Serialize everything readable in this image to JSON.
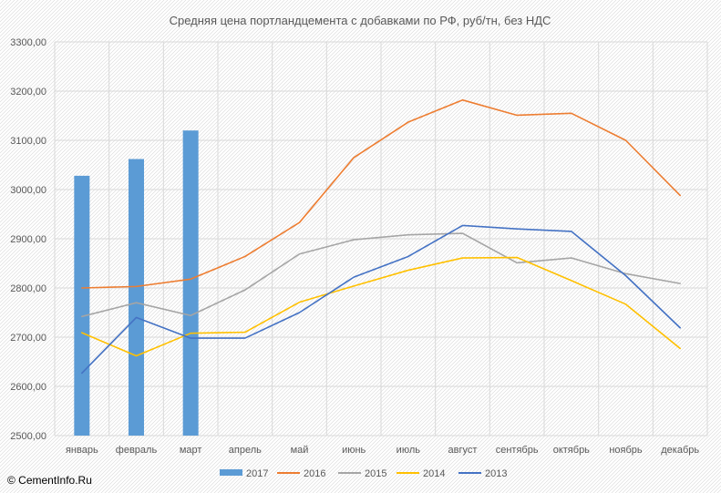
{
  "copyright": "© CementInfo.Ru",
  "chart_data": {
    "type": "bar+line",
    "title": "Средняя цена портландцемента с добавками по РФ, руб/тн, без НДС",
    "categories": [
      "январь",
      "февраль",
      "март",
      "апрель",
      "май",
      "июнь",
      "июль",
      "август",
      "сентябрь",
      "октябрь",
      "ноябрь",
      "декабрь"
    ],
    "ylim": [
      2500,
      3300
    ],
    "yticks": [
      2500,
      2600,
      2700,
      2800,
      2900,
      3000,
      3100,
      3200,
      3300
    ],
    "ytick_labels": [
      "2500,00",
      "2600,00",
      "2700,00",
      "2800,00",
      "2900,00",
      "3000,00",
      "3100,00",
      "3200,00",
      "3300,00"
    ],
    "grid": true,
    "legend_position": "bottom",
    "series": [
      {
        "name": "2017",
        "kind": "bar",
        "color": "#5B9BD5",
        "values": [
          3028,
          3062,
          3120,
          null,
          null,
          null,
          null,
          null,
          null,
          null,
          null,
          null
        ]
      },
      {
        "name": "2016",
        "kind": "line",
        "color": "#ED7D31",
        "values": [
          2800,
          2803,
          2818,
          2864,
          2933,
          3065,
          3137,
          3182,
          3151,
          3155,
          3100,
          2988
        ]
      },
      {
        "name": "2015",
        "kind": "line",
        "color": "#A5A5A5",
        "values": [
          2742,
          2770,
          2744,
          2796,
          2869,
          2898,
          2908,
          2911,
          2851,
          2861,
          2829,
          2809
        ]
      },
      {
        "name": "2014",
        "kind": "line",
        "color": "#FFC000",
        "values": [
          2709,
          2662,
          2708,
          2710,
          2771,
          2804,
          2836,
          2861,
          2862,
          2815,
          2767,
          2677
        ]
      },
      {
        "name": "2013",
        "kind": "line",
        "color": "#4472C4",
        "values": [
          2627,
          2740,
          2698,
          2698,
          2750,
          2822,
          2864,
          2927,
          2920,
          2915,
          2825,
          2719
        ]
      }
    ]
  }
}
